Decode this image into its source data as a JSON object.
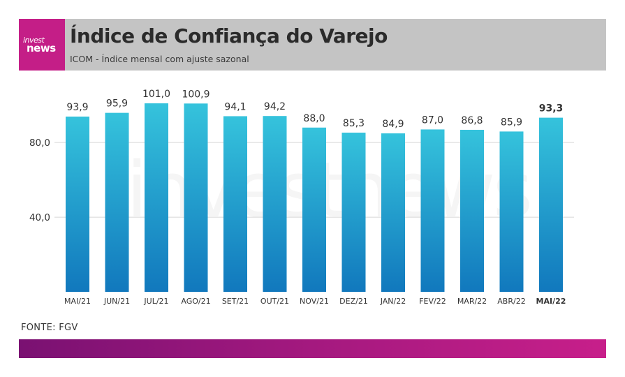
{
  "header": {
    "logo_line1": "invest",
    "logo_line2": "news",
    "title": "Índice de Confiança do Varejo",
    "subtitle": "ICOM - Índice mensal com ajuste sazonal"
  },
  "source": "FONTE: FGV",
  "watermark": "investnews",
  "colors": {
    "header_bg": "#c4c4c4",
    "brand": "#c41e87",
    "bar_top": "#35c3dc",
    "bar_bottom": "#1178bd",
    "footer_start": "#7a1172",
    "footer_end": "#c71f8a"
  },
  "chart_data": {
    "type": "bar",
    "categories": [
      "MAI/21",
      "JUN/21",
      "JUL/21",
      "AGO/21",
      "SET/21",
      "OUT/21",
      "NOV/21",
      "DEZ/21",
      "JAN/22",
      "FEV/22",
      "MAR/22",
      "ABR/22",
      "MAI/22"
    ],
    "values": [
      93.9,
      95.9,
      101.0,
      100.9,
      94.1,
      94.2,
      88.0,
      85.3,
      84.9,
      87.0,
      86.8,
      85.9,
      93.3
    ],
    "value_labels": [
      "93,9",
      "95,9",
      "101,0",
      "100,9",
      "94,1",
      "94,2",
      "88,0",
      "85,3",
      "84,9",
      "87,0",
      "86,8",
      "85,9",
      "93,3"
    ],
    "highlight_index": 12,
    "yticks": [
      40,
      80
    ],
    "ytick_labels": [
      "40,0",
      "80,0"
    ],
    "ylim": [
      0,
      101
    ],
    "grid": true,
    "title": "",
    "xlabel": "",
    "ylabel": ""
  }
}
